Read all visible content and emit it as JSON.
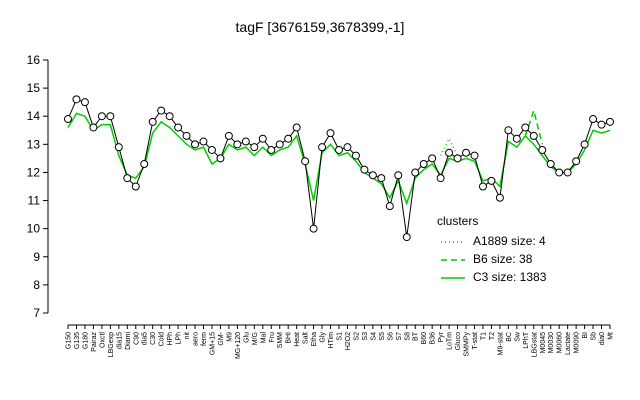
{
  "chart_data": {
    "type": "line",
    "title": "tagF [3676159,3678399,-1]",
    "categories": [
      "G150",
      "G135",
      "G180",
      "Pairaz",
      "Oxctl",
      "LBGexp",
      "dia15",
      "Diami",
      "C90",
      "dia5",
      "C30",
      "Cold",
      "HPh",
      "LPh",
      "nit",
      "aero",
      "ferm",
      "GM+15",
      "GM-",
      "M9",
      "MG+120",
      "Glu",
      "M/G",
      "Mal",
      "Fru",
      "SMM",
      "BHI",
      "Heat",
      "Salt",
      "Etha",
      "Gly",
      "HTim",
      "S1",
      "H2O2",
      "S2",
      "S3",
      "S4",
      "S5",
      "S6",
      "S7",
      "S8",
      "BT",
      "B60",
      "B36",
      "Pyr",
      "LoTm",
      "Gluco",
      "SMMPy",
      "T-stat",
      "T1",
      "T2",
      "M9-stat",
      "BC",
      "Sw",
      "LPhT",
      "LBGstat",
      "M0045",
      "M0030",
      "M0060",
      "Lactate",
      "M0090",
      "BI",
      "Sb",
      "dia0",
      "Mt"
    ],
    "values": [
      13.9,
      14.6,
      14.5,
      13.6,
      14.0,
      14.0,
      12.9,
      11.8,
      11.5,
      12.3,
      13.8,
      14.2,
      14.0,
      13.6,
      13.3,
      13.0,
      13.1,
      12.8,
      12.5,
      13.3,
      13.0,
      13.1,
      12.9,
      13.2,
      12.8,
      13.0,
      13.2,
      13.6,
      12.4,
      10.0,
      12.9,
      13.4,
      12.8,
      12.9,
      12.6,
      12.1,
      11.9,
      11.8,
      10.8,
      11.9,
      9.7,
      12.0,
      12.3,
      12.5,
      11.8,
      12.7,
      12.5,
      12.7,
      12.6,
      11.5,
      11.7,
      11.1,
      13.5,
      13.2,
      13.6,
      13.3,
      12.8,
      12.3,
      12.0,
      12.0,
      12.4,
      13.0,
      13.9,
      13.7,
      13.8
    ],
    "color": "#000000",
    "series": [
      {
        "name": "A1889 size: 4",
        "color": "#00cc00",
        "style": "dotted",
        "values": [
          null,
          null,
          null,
          null,
          null,
          null,
          null,
          null,
          null,
          null,
          null,
          null,
          null,
          null,
          null,
          null,
          null,
          null,
          null,
          null,
          null,
          null,
          null,
          null,
          null,
          null,
          null,
          null,
          null,
          null,
          null,
          null,
          null,
          null,
          null,
          null,
          null,
          null,
          null,
          null,
          null,
          null,
          null,
          null,
          12.6,
          13.2,
          12.6,
          null,
          null,
          null,
          null,
          null,
          null,
          null,
          null,
          null,
          null,
          null,
          null,
          null,
          null,
          null,
          null,
          null,
          null
        ]
      },
      {
        "name": "B6 size: 38",
        "color": "#00cc00",
        "style": "dashed",
        "values": [
          null,
          null,
          null,
          null,
          null,
          null,
          null,
          null,
          null,
          null,
          null,
          null,
          null,
          null,
          null,
          null,
          null,
          null,
          null,
          null,
          null,
          null,
          null,
          null,
          null,
          null,
          null,
          null,
          null,
          null,
          null,
          null,
          null,
          null,
          null,
          null,
          null,
          null,
          null,
          null,
          null,
          null,
          null,
          null,
          null,
          null,
          null,
          null,
          null,
          null,
          null,
          null,
          null,
          null,
          13.3,
          14.2,
          13.0,
          null,
          null,
          null,
          null,
          null,
          null,
          null,
          null
        ]
      },
      {
        "name": "C3 size: 1383",
        "color": "#00cc00",
        "style": "solid",
        "values": [
          13.6,
          14.1,
          14.0,
          13.5,
          13.7,
          13.7,
          12.6,
          11.9,
          11.8,
          12.2,
          13.4,
          13.8,
          13.6,
          13.3,
          13.0,
          12.8,
          12.9,
          12.3,
          12.5,
          13.0,
          12.8,
          12.9,
          12.6,
          12.9,
          12.6,
          12.8,
          12.9,
          13.3,
          12.3,
          11.0,
          12.7,
          13.0,
          12.6,
          12.7,
          12.4,
          12.0,
          11.8,
          11.6,
          11.1,
          11.7,
          10.9,
          11.8,
          12.1,
          12.3,
          11.9,
          12.5,
          12.4,
          12.5,
          12.4,
          11.7,
          11.8,
          11.5,
          13.1,
          12.9,
          13.3,
          13.0,
          12.6,
          12.2,
          12.0,
          12.0,
          12.3,
          12.8,
          13.5,
          13.4,
          13.5
        ]
      }
    ],
    "legend_title": "clusters",
    "legend": "center-right",
    "ylim": [
      7,
      16
    ],
    "yticks": [
      7,
      8,
      9,
      10,
      11,
      12,
      13,
      14,
      15,
      16
    ]
  }
}
